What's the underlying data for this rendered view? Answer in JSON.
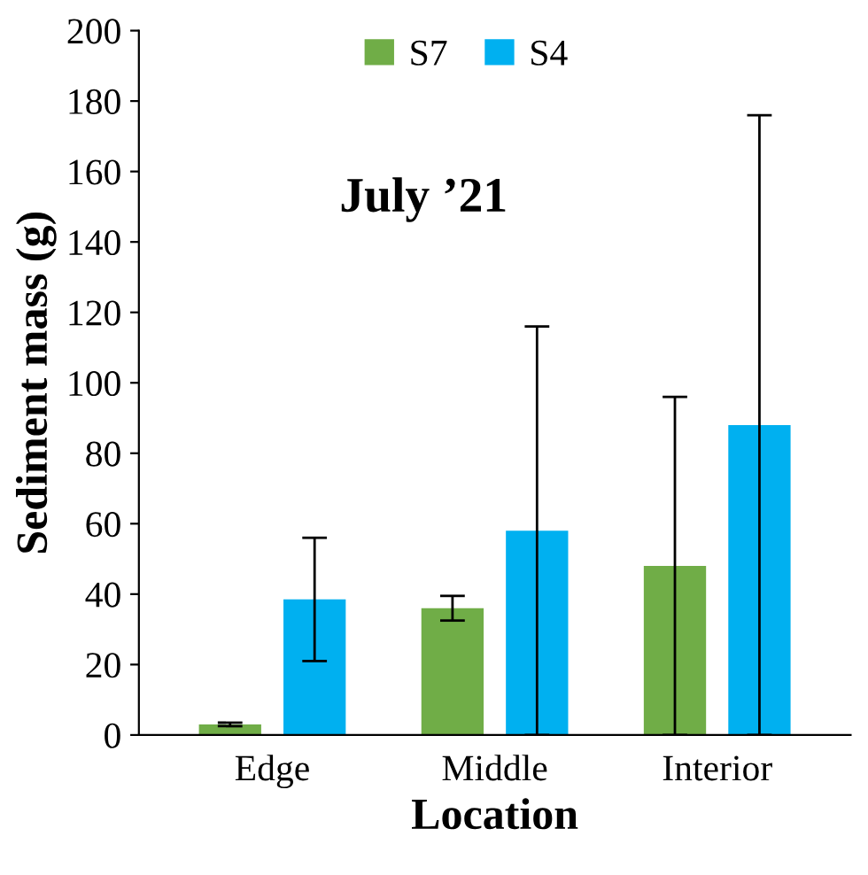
{
  "chart_data": {
    "type": "bar",
    "title": "July ’21",
    "xlabel": "Location",
    "ylabel": "Sediment mass (g)",
    "categories": [
      "Edge",
      "Middle",
      "Interior"
    ],
    "series": [
      {
        "name": "S7",
        "color": "#70ad47",
        "values": [
          3,
          36,
          48
        ],
        "errors": [
          0.5,
          3.5,
          48
        ]
      },
      {
        "name": "S4",
        "color": "#00b0f0",
        "values": [
          38.5,
          58,
          88
        ],
        "errors": [
          17.5,
          58,
          88
        ]
      }
    ],
    "ylim": [
      0,
      200
    ],
    "yticks": [
      0,
      20,
      40,
      60,
      80,
      100,
      120,
      140,
      160,
      180,
      200
    ],
    "grid": false,
    "legend": "top"
  }
}
